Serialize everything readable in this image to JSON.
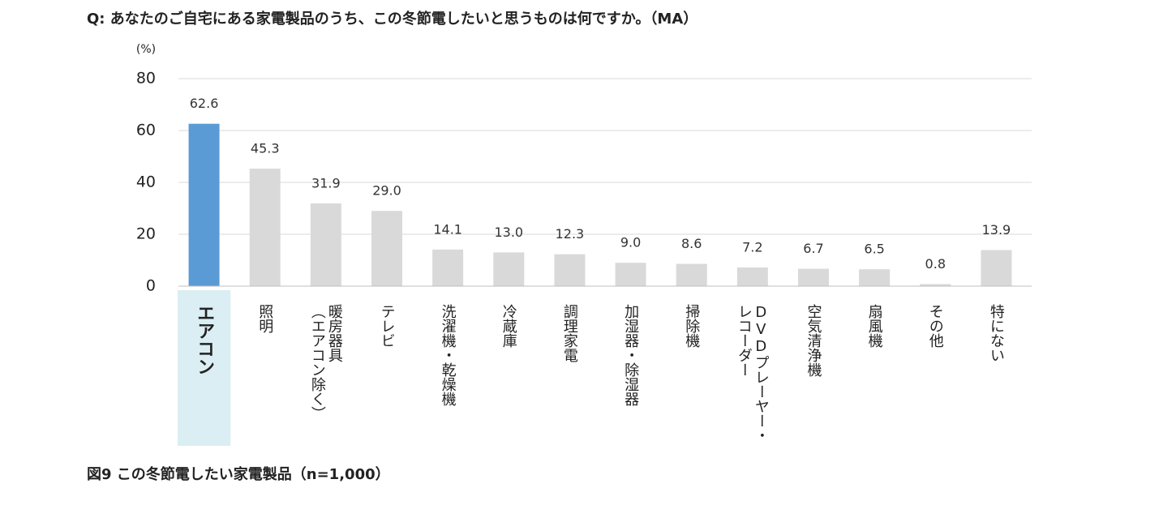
{
  "chart_data": {
    "type": "bar",
    "title": "Q:  あなたのご自宅にある家電製品のうち、この冬節電したいと思うものは何ですか。（MA）",
    "y_unit": "(%)",
    "caption": "図9  この冬節電したい家電製品（n=1,000）",
    "categories": [
      [
        "エアコン"
      ],
      [
        "照明"
      ],
      [
        "暖房器具",
        "（エアコン除く）"
      ],
      [
        "テレビ"
      ],
      [
        "洗濯機・乾燥機"
      ],
      [
        "冷蔵庫"
      ],
      [
        "調理家電"
      ],
      [
        "加湿器・除湿器"
      ],
      [
        "掃除機"
      ],
      [
        "DVDプレーヤー・",
        "レコーダー"
      ],
      [
        "空気清浄機"
      ],
      [
        "扇風機"
      ],
      [
        "その他"
      ],
      [
        "特にない"
      ]
    ],
    "values": [
      62.6,
      45.3,
      31.9,
      29.0,
      14.1,
      13.0,
      12.3,
      9.0,
      8.6,
      7.2,
      6.7,
      6.5,
      0.8,
      13.9
    ],
    "value_labels": [
      "62.6",
      "45.3",
      "31.9",
      "29.0",
      "14.1",
      "13.0",
      "12.3",
      "9.0",
      "8.6",
      "7.2",
      "6.7",
      "6.5",
      "0.8",
      "13.9"
    ],
    "colors": [
      "#5b9bd5",
      "#d9d9d9",
      "#d9d9d9",
      "#d9d9d9",
      "#d9d9d9",
      "#d9d9d9",
      "#d9d9d9",
      "#d9d9d9",
      "#d9d9d9",
      "#d9d9d9",
      "#d9d9d9",
      "#d9d9d9",
      "#d9d9d9",
      "#d9d9d9"
    ],
    "highlight": {
      "category": 0,
      "background": "#daeef3"
    },
    "ylim": [
      0,
      80
    ],
    "yticks": [
      0,
      20,
      40,
      60,
      80
    ],
    "grid": true
  }
}
